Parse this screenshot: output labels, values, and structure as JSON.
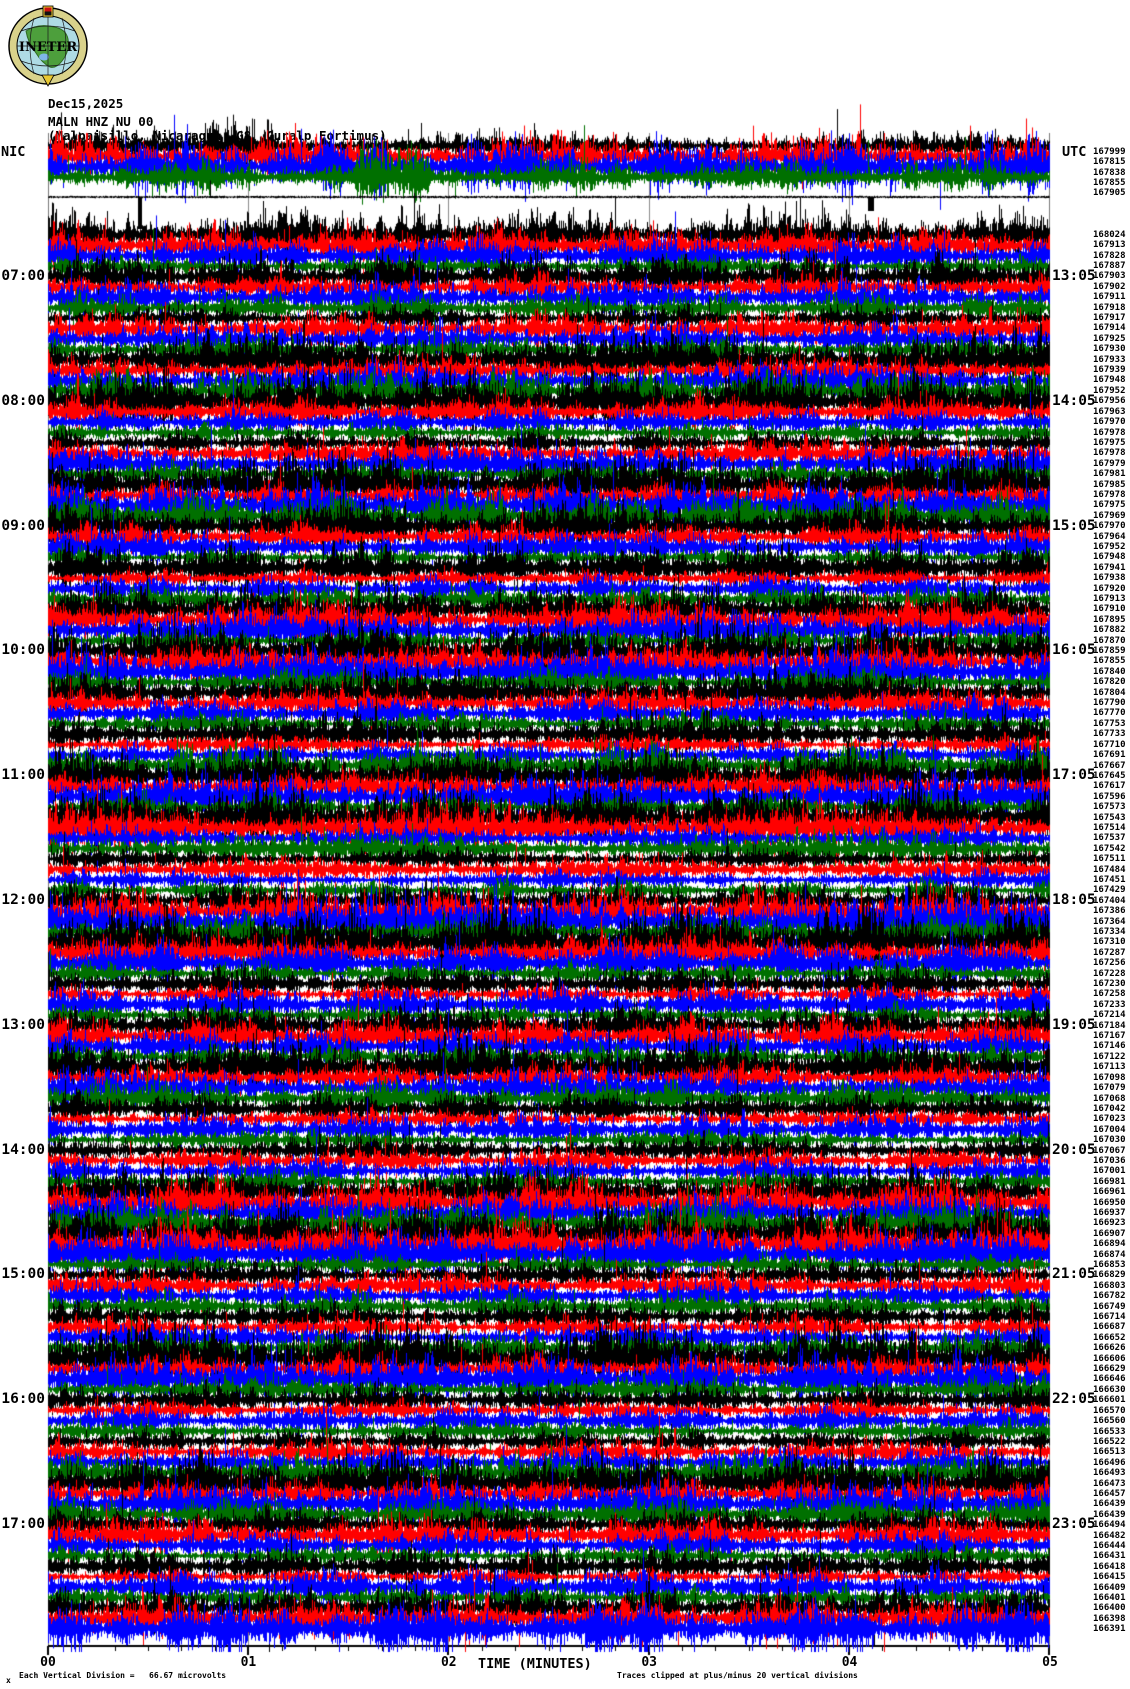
{
  "logo": {
    "text": "INETER"
  },
  "header": {
    "date": "Dec15,2025",
    "station": "MALN HNZ NU 00",
    "description": "(Malpaisillo, Nicaragua  G8  Guralp Fortimus)"
  },
  "axes": {
    "left_label": "NIC",
    "right_label": "UTC",
    "left_hours": [
      "07:00",
      "08:00",
      "09:00",
      "10:00",
      "11:00",
      "12:00",
      "13:00",
      "14:00",
      "15:00",
      "16:00",
      "17:00"
    ],
    "right_hours": [
      "13:05",
      "14:05",
      "15:05",
      "16:05",
      "17:05",
      "18:05",
      "19:05",
      "20:05",
      "21:05",
      "22:05",
      "23:05"
    ],
    "x_ticks": [
      "00",
      "01",
      "02",
      "03",
      "04",
      "05"
    ],
    "x_title": "TIME (MINUTES)"
  },
  "footer": {
    "corner_mark": "x",
    "scale_note": "Each Vertical Division =   66.67 microvolts",
    "clip_note": "Traces clipped at plus/minus 20 vertical divisions"
  },
  "chart_data": {
    "type": "line",
    "subtype": "helicorder-seismogram",
    "minutes_per_line": 5,
    "x_range_minutes": [
      0,
      5
    ],
    "lines_per_hour": 12,
    "trace_colors_cycle": [
      "#000000",
      "#ff0000",
      "#0000ff",
      "#007000"
    ],
    "clip_divisions": 20,
    "microvolts_per_division": 66.67,
    "top_block_line_values": [
      "167999",
      "167815",
      "167838",
      "167855",
      "167905"
    ],
    "line_values": [
      "168024",
      "167913",
      "167828",
      "167887",
      "167903",
      "167902",
      "167911",
      "167918",
      "167917",
      "167914",
      "167925",
      "167930",
      "167933",
      "167939",
      "167948",
      "167952",
      "167956",
      "167963",
      "167970",
      "167978",
      "167975",
      "167978",
      "167979",
      "167981",
      "167985",
      "167978",
      "167975",
      "167969",
      "167970",
      "167964",
      "167952",
      "167948",
      "167941",
      "167938",
      "167920",
      "167913",
      "167910",
      "167895",
      "167882",
      "167870",
      "167859",
      "167855",
      "167840",
      "167820",
      "167804",
      "167790",
      "167770",
      "167753",
      "167733",
      "167710",
      "167691",
      "167667",
      "167645",
      "167617",
      "167596",
      "167573",
      "167543",
      "167514",
      "167537",
      "167542",
      "167511",
      "167484",
      "167451",
      "167429",
      "167404",
      "167386",
      "167364",
      "167334",
      "167310",
      "167287",
      "167256",
      "167228",
      "167230",
      "167258",
      "167233",
      "167214",
      "167184",
      "167167",
      "167146",
      "167122",
      "167113",
      "167098",
      "167079",
      "167068",
      "167042",
      "167023",
      "167004",
      "167030",
      "167067",
      "167036",
      "167001",
      "166981",
      "166961",
      "166950",
      "166937",
      "166923",
      "166907",
      "166894",
      "166874",
      "166853",
      "166829",
      "166803",
      "166782",
      "166749",
      "166714",
      "166687",
      "166652",
      "166626",
      "166606",
      "166629",
      "166646",
      "166630",
      "166601",
      "166570",
      "166560",
      "166533",
      "166522",
      "166513",
      "166496",
      "166493",
      "166473",
      "166457",
      "166439",
      "166439",
      "166494",
      "166482",
      "166444",
      "166431",
      "166418",
      "166415",
      "166409",
      "166401",
      "166400",
      "166398",
      "166391"
    ]
  }
}
